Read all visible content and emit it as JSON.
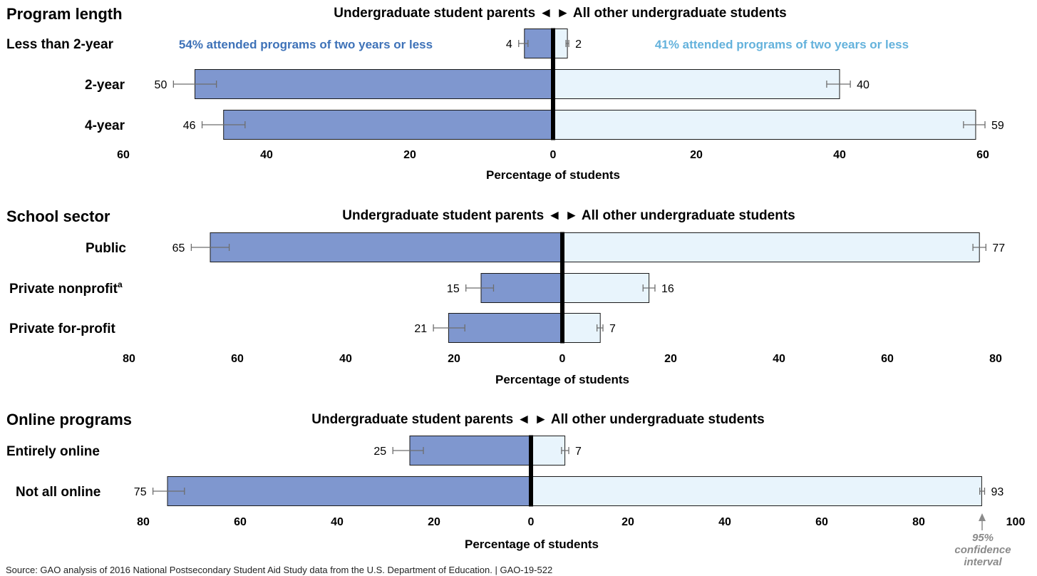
{
  "chart_data": [
    {
      "type": "bar",
      "section_title": "Program length",
      "title": "Undergraduate student parents ◄ ► All other undergraduate students",
      "xlabel": "Percentage of students",
      "categories": [
        "Less than 2-year",
        "2-year",
        "4-year"
      ],
      "series": [
        {
          "name": "Undergraduate student parents",
          "values": [
            4,
            50,
            46
          ],
          "ci_low": [
            3.5,
            47,
            43
          ],
          "ci_high": [
            4.8,
            53,
            49
          ],
          "color": "#7f97cf"
        },
        {
          "name": "All other undergraduate students",
          "values": [
            2,
            40,
            59
          ],
          "ci_low": [
            1.8,
            38.2,
            57.3
          ],
          "ci_high": [
            2.2,
            41.5,
            60.3
          ],
          "color": "#e8f4fc"
        }
      ],
      "ticks_left": [
        "60",
        "40",
        "20",
        "0"
      ],
      "ticks_right": [
        "20",
        "40",
        "60"
      ],
      "xlim_left": 60,
      "xlim_right": 60,
      "annotations": [
        {
          "text": "54% attended programs of two years or less",
          "color": "#3e72b8"
        },
        {
          "text": "41% attended programs of two years or less",
          "color": "#64b2dc"
        }
      ]
    },
    {
      "type": "bar",
      "section_title": "School sector",
      "title": "Undergraduate student parents ◄ ► All other undergraduate students",
      "xlabel": "Percentage of students",
      "categories": [
        "Public",
        "Private nonprofit",
        "Private for-profit"
      ],
      "category_superscripts": [
        "",
        "a",
        ""
      ],
      "series": [
        {
          "name": "Undergraduate student parents",
          "values": [
            65,
            15,
            21
          ],
          "ci_low": [
            61.5,
            12.7,
            18
          ],
          "ci_high": [
            68.5,
            17.8,
            23.8
          ],
          "color": "#7f97cf"
        },
        {
          "name": "All other undergraduate students",
          "values": [
            77,
            16,
            7
          ],
          "ci_low": [
            75.8,
            14.9,
            6.4
          ],
          "ci_high": [
            78.2,
            17.1,
            7.5
          ],
          "color": "#e8f4fc"
        }
      ],
      "ticks_left": [
        "80",
        "60",
        "40",
        "20",
        "0"
      ],
      "ticks_right": [
        "20",
        "40",
        "60",
        "80"
      ],
      "xlim_left": 80,
      "xlim_right": 80
    },
    {
      "type": "bar",
      "section_title": "Online programs",
      "title": "Undergraduate student parents ◄ ► All other undergraduate students",
      "xlabel": "Percentage of students",
      "categories": [
        "Entirely online",
        "Not all online"
      ],
      "series": [
        {
          "name": "Undergraduate student parents",
          "values": [
            25,
            75
          ],
          "ci_low": [
            22.2,
            71.5
          ],
          "ci_high": [
            28.5,
            78
          ],
          "color": "#7f97cf"
        },
        {
          "name": "All other undergraduate students",
          "values": [
            7,
            93
          ],
          "ci_low": [
            6.3,
            92.6
          ],
          "ci_high": [
            7.8,
            93.6
          ],
          "color": "#e8f4fc"
        }
      ],
      "ticks_left": [
        "80",
        "60",
        "40",
        "20",
        "0"
      ],
      "ticks_right": [
        "20",
        "40",
        "60",
        "80",
        "100"
      ],
      "xlim_left": 80,
      "xlim_right": 100
    }
  ],
  "ci_note": "95% confidence interval",
  "source": "Source: GAO analysis of 2016 National Postsecondary Student Aid Study data from the U.S. Department of Education.  |  GAO-19-522"
}
